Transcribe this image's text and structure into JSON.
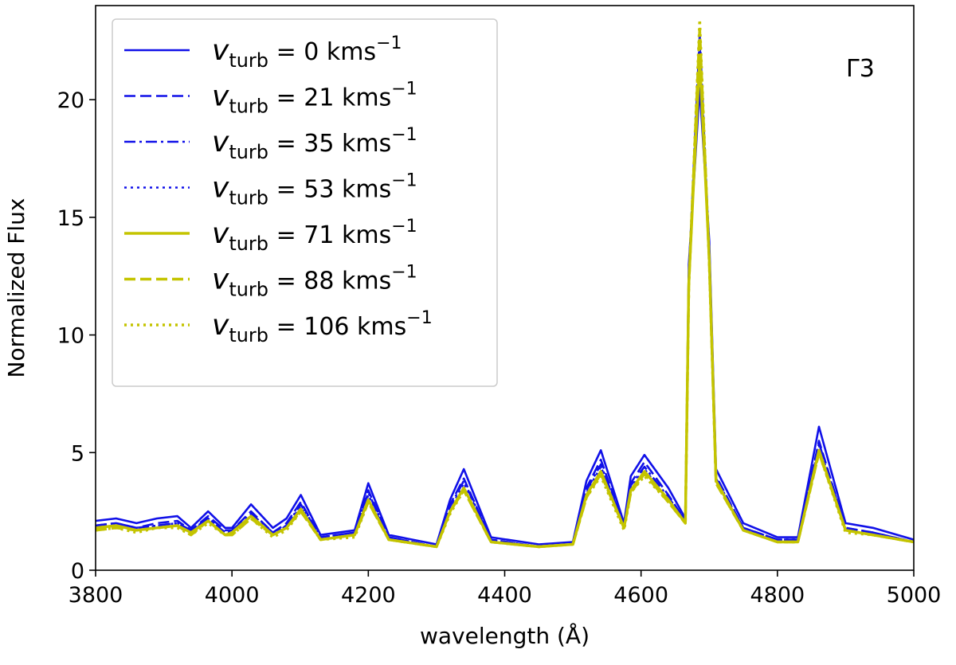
{
  "chart_data": {
    "type": "line",
    "xlabel": "wavelength (Å)",
    "ylabel": "Normalized Flux",
    "xlim": [
      3800,
      5000
    ],
    "ylim": [
      0,
      24
    ],
    "xticks": [
      3800,
      4000,
      4200,
      4400,
      4600,
      4800,
      5000
    ],
    "yticks": [
      0,
      5,
      10,
      15,
      20
    ],
    "annotation": "Γ3",
    "legend_position": "upper-left",
    "grid": false,
    "series": [
      {
        "name": "v_turb = 0 kms^-1",
        "label_value": "0",
        "color": "#1010e8",
        "linestyle": "solid",
        "x": [
          3800,
          3830,
          3860,
          3890,
          3920,
          3940,
          3965,
          3990,
          4000,
          4028,
          4060,
          4080,
          4101,
          4130,
          4180,
          4200,
          4230,
          4300,
          4320,
          4340,
          4380,
          4450,
          4500,
          4520,
          4541,
          4575,
          4585,
          4605,
          4640,
          4665,
          4670,
          4686,
          4700,
          4710,
          4750,
          4800,
          4830,
          4861,
          4900,
          4940,
          5000
        ],
        "y": [
          2.1,
          2.2,
          2.0,
          2.2,
          2.3,
          1.8,
          2.5,
          1.8,
          1.8,
          2.8,
          1.8,
          2.2,
          3.2,
          1.5,
          1.7,
          3.7,
          1.5,
          1.1,
          3.0,
          4.3,
          1.4,
          1.1,
          1.2,
          3.8,
          5.1,
          2.0,
          4.0,
          4.9,
          3.5,
          2.2,
          13.0,
          20.5,
          14.0,
          4.3,
          2.0,
          1.4,
          1.4,
          6.1,
          2.0,
          1.8,
          1.3
        ]
      },
      {
        "name": "v_turb = 21 kms^-1",
        "label_value": "21",
        "color": "#1010e8",
        "linestyle": "dashed",
        "x": [
          3800,
          3830,
          3860,
          3890,
          3920,
          3940,
          3965,
          3990,
          4000,
          4028,
          4060,
          4080,
          4101,
          4130,
          4180,
          4200,
          4230,
          4300,
          4320,
          4340,
          4380,
          4450,
          4500,
          4520,
          4541,
          4575,
          4585,
          4605,
          4640,
          4665,
          4670,
          4686,
          4700,
          4710,
          4750,
          4800,
          4830,
          4861,
          4900,
          4940,
          5000
        ],
        "y": [
          1.9,
          2.0,
          1.8,
          2.0,
          2.1,
          1.7,
          2.3,
          1.7,
          1.7,
          2.5,
          1.6,
          2.0,
          2.9,
          1.4,
          1.6,
          3.4,
          1.4,
          1.0,
          2.8,
          3.9,
          1.3,
          1.0,
          1.1,
          3.5,
          4.7,
          1.9,
          3.7,
          4.6,
          3.2,
          2.1,
          12.5,
          22.8,
          13.5,
          4.0,
          1.8,
          1.3,
          1.3,
          5.5,
          1.8,
          1.6,
          1.2
        ]
      },
      {
        "name": "v_turb = 35 kms^-1",
        "label_value": "35",
        "color": "#1010e8",
        "linestyle": "dashdot",
        "x": [
          3800,
          3830,
          3860,
          3890,
          3920,
          3940,
          3965,
          3990,
          4000,
          4028,
          4060,
          4080,
          4101,
          4130,
          4180,
          4200,
          4230,
          4300,
          4320,
          4340,
          4380,
          4450,
          4500,
          4520,
          4541,
          4575,
          4585,
          4605,
          4640,
          4665,
          4670,
          4686,
          4700,
          4710,
          4750,
          4800,
          4830,
          4861,
          4900,
          4940,
          5000
        ],
        "y": [
          1.9,
          2.0,
          1.8,
          1.9,
          2.0,
          1.7,
          2.2,
          1.6,
          1.7,
          2.4,
          1.6,
          1.9,
          2.8,
          1.4,
          1.6,
          3.3,
          1.4,
          1.0,
          2.7,
          3.8,
          1.3,
          1.0,
          1.1,
          3.4,
          4.5,
          1.9,
          3.6,
          4.4,
          3.1,
          2.1,
          12.4,
          22.4,
          13.4,
          3.9,
          1.8,
          1.3,
          1.3,
          5.4,
          1.8,
          1.6,
          1.2
        ]
      },
      {
        "name": "v_turb = 53 kms^-1",
        "label_value": "53",
        "color": "#1010e8",
        "linestyle": "dotted",
        "x": [
          3800,
          3830,
          3860,
          3890,
          3920,
          3940,
          3965,
          3990,
          4000,
          4028,
          4060,
          4080,
          4101,
          4130,
          4180,
          4200,
          4230,
          4300,
          4320,
          4340,
          4380,
          4450,
          4500,
          4520,
          4541,
          4575,
          4585,
          4605,
          4640,
          4665,
          4670,
          4686,
          4700,
          4710,
          4750,
          4800,
          4830,
          4861,
          4900,
          4940,
          5000
        ],
        "y": [
          1.8,
          1.9,
          1.7,
          1.9,
          2.0,
          1.6,
          2.2,
          1.6,
          1.6,
          2.3,
          1.5,
          1.9,
          2.7,
          1.3,
          1.5,
          3.2,
          1.3,
          1.0,
          2.6,
          3.7,
          1.3,
          1.0,
          1.1,
          3.3,
          4.4,
          1.8,
          3.5,
          4.3,
          3.0,
          2.0,
          12.3,
          22.0,
          13.3,
          3.8,
          1.8,
          1.3,
          1.3,
          5.3,
          1.7,
          1.5,
          1.2
        ]
      },
      {
        "name": "v_turb = 71 kms^-1",
        "label_value": "71",
        "color": "#c4c400",
        "linestyle": "solid",
        "x": [
          3800,
          3830,
          3860,
          3890,
          3920,
          3940,
          3965,
          3990,
          4000,
          4028,
          4060,
          4080,
          4101,
          4130,
          4180,
          4200,
          4230,
          4300,
          4320,
          4340,
          4380,
          4450,
          4500,
          4520,
          4541,
          4575,
          4585,
          4605,
          4640,
          4665,
          4670,
          4686,
          4700,
          4710,
          4750,
          4800,
          4830,
          4861,
          4900,
          4940,
          5000
        ],
        "y": [
          1.8,
          1.9,
          1.7,
          1.8,
          1.9,
          1.6,
          2.1,
          1.5,
          1.6,
          2.3,
          1.5,
          1.8,
          2.6,
          1.3,
          1.5,
          3.0,
          1.3,
          1.0,
          2.5,
          3.5,
          1.2,
          1.0,
          1.1,
          3.2,
          4.2,
          1.8,
          3.4,
          4.2,
          3.0,
          2.0,
          12.2,
          21.8,
          13.2,
          3.8,
          1.7,
          1.2,
          1.2,
          5.1,
          1.7,
          1.5,
          1.2
        ]
      },
      {
        "name": "v_turb = 88 kms^-1",
        "label_value": "88",
        "color": "#c4c400",
        "linestyle": "dashed",
        "x": [
          3800,
          3830,
          3860,
          3890,
          3920,
          3940,
          3965,
          3990,
          4000,
          4028,
          4060,
          4080,
          4101,
          4130,
          4180,
          4200,
          4230,
          4300,
          4320,
          4340,
          4380,
          4450,
          4500,
          4520,
          4541,
          4575,
          4585,
          4605,
          4640,
          4665,
          4670,
          4686,
          4700,
          4710,
          4750,
          4800,
          4830,
          4861,
          4900,
          4940,
          5000
        ],
        "y": [
          1.7,
          1.8,
          1.7,
          1.8,
          1.9,
          1.5,
          2.1,
          1.5,
          1.5,
          2.2,
          1.5,
          1.8,
          2.5,
          1.3,
          1.5,
          2.9,
          1.3,
          1.0,
          2.5,
          3.4,
          1.2,
          1.0,
          1.1,
          3.1,
          4.1,
          1.8,
          3.3,
          4.1,
          2.9,
          2.0,
          12.1,
          23.0,
          13.1,
          3.7,
          1.7,
          1.2,
          1.2,
          5.0,
          1.7,
          1.5,
          1.2
        ]
      },
      {
        "name": "v_turb = 106 kms^-1",
        "label_value": "106",
        "color": "#c4c400",
        "linestyle": "dotted",
        "x": [
          3800,
          3830,
          3860,
          3890,
          3920,
          3940,
          3965,
          3990,
          4000,
          4028,
          4060,
          4080,
          4101,
          4130,
          4180,
          4200,
          4230,
          4300,
          4320,
          4340,
          4380,
          4450,
          4500,
          4520,
          4541,
          4575,
          4585,
          4605,
          4640,
          4665,
          4670,
          4686,
          4700,
          4710,
          4750,
          4800,
          4830,
          4861,
          4900,
          4940,
          5000
        ],
        "y": [
          1.7,
          1.8,
          1.6,
          1.8,
          1.8,
          1.5,
          2.0,
          1.5,
          1.5,
          2.2,
          1.4,
          1.7,
          2.5,
          1.3,
          1.4,
          2.9,
          1.3,
          1.0,
          2.4,
          3.4,
          1.2,
          1.0,
          1.1,
          3.1,
          4.0,
          1.7,
          3.3,
          4.0,
          2.9,
          2.0,
          12.0,
          23.4,
          13.0,
          3.7,
          1.7,
          1.2,
          1.2,
          5.0,
          1.6,
          1.5,
          1.2
        ]
      }
    ]
  }
}
